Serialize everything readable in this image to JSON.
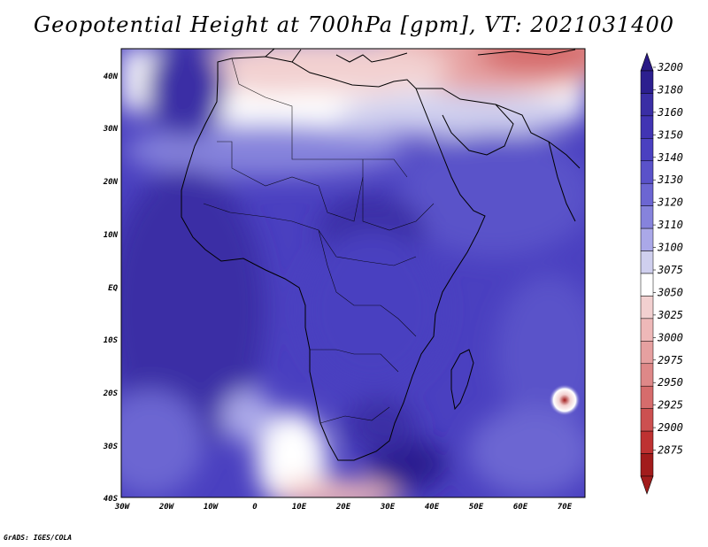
{
  "title": "Geopotential Height at 700hPa [gpm], VT: 2021031400",
  "footer": "GrADS: IGES/COLA",
  "map": {
    "lon_range": [
      -30,
      75
    ],
    "lat_range": [
      -40,
      45
    ],
    "lat_ticks": [
      "40N",
      "30N",
      "20N",
      "10N",
      "EQ",
      "10S",
      "20S",
      "30S",
      "40S"
    ],
    "lon_ticks": [
      "30W",
      "20W",
      "10W",
      "0",
      "10E",
      "20E",
      "30E",
      "40E",
      "50E",
      "60E",
      "70E"
    ]
  },
  "colorbar": {
    "labels": [
      "3200",
      "3180",
      "3160",
      "3150",
      "3140",
      "3130",
      "3120",
      "3110",
      "3100",
      "3075",
      "3050",
      "3025",
      "3000",
      "2975",
      "2950",
      "2925",
      "2900",
      "2875"
    ],
    "colors": [
      "#2c1f8f",
      "#3a2ea5",
      "#4134b3",
      "#4a40c0",
      "#5a52c9",
      "#6c66d2",
      "#8683dc",
      "#aaa8e8",
      "#cfcfee",
      "#ffffff",
      "#f2d0d0",
      "#eeb8b8",
      "#e6a0a0",
      "#de8888",
      "#d66c6c",
      "#cc5050",
      "#be3232",
      "#a21c1c"
    ],
    "top_arrow_color": "#2a1a86",
    "bottom_arrow_color": "#a21c1c"
  }
}
